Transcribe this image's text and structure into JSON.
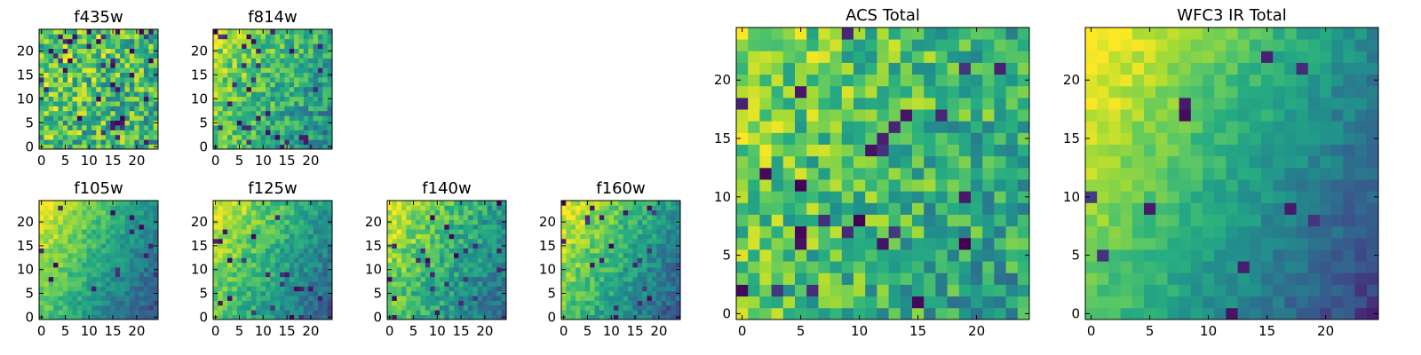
{
  "chart_data": [
    {
      "type": "heatmap",
      "title": "f435w",
      "grid": false,
      "colormap": "viridis",
      "x_range": [
        0,
        24
      ],
      "y_range": [
        0,
        24
      ],
      "xticks": [
        "0",
        "5",
        "10",
        "15",
        "20"
      ],
      "yticks": [
        "0",
        "5",
        "10",
        "15",
        "20"
      ],
      "values": "25x25 image; noisy, mostly mid-to-high intensity with scattered dark pixels"
    },
    {
      "type": "heatmap",
      "title": "f814w",
      "grid": false,
      "colormap": "viridis",
      "x_range": [
        0,
        24
      ],
      "y_range": [
        0,
        24
      ],
      "xticks": [
        "0",
        "5",
        "10",
        "15",
        "20"
      ],
      "yticks": [
        "0",
        "5",
        "10",
        "15",
        "20"
      ],
      "values": "25x25 image; brighter upper-left, darker lower-right, noisy"
    },
    {
      "type": "heatmap",
      "title": "f105w",
      "grid": false,
      "colormap": "viridis",
      "x_range": [
        0,
        24
      ],
      "y_range": [
        0,
        24
      ],
      "xticks": [
        "0",
        "5",
        "10",
        "15",
        "20"
      ],
      "yticks": [
        "0",
        "5",
        "10",
        "15",
        "20"
      ],
      "values": "25x25 image; bright left edge fading to dark at lower-right"
    },
    {
      "type": "heatmap",
      "title": "f125w",
      "grid": false,
      "colormap": "viridis",
      "x_range": [
        0,
        24
      ],
      "y_range": [
        0,
        24
      ],
      "xticks": [
        "0",
        "5",
        "10",
        "15",
        "20"
      ],
      "yticks": [
        "0",
        "5",
        "10",
        "15",
        "20"
      ],
      "values": "25x25 image; bright upper-left, darker lower-right"
    },
    {
      "type": "heatmap",
      "title": "f140w",
      "grid": false,
      "colormap": "viridis",
      "x_range": [
        0,
        24
      ],
      "y_range": [
        0,
        24
      ],
      "xticks": [
        "0",
        "5",
        "10",
        "15",
        "20"
      ],
      "yticks": [
        "0",
        "5",
        "10",
        "15",
        "20"
      ],
      "values": "25x25 image; bright left, dark patches at lower-right"
    },
    {
      "type": "heatmap",
      "title": "f160w",
      "grid": false,
      "colormap": "viridis",
      "x_range": [
        0,
        24
      ],
      "y_range": [
        0,
        24
      ],
      "xticks": [
        "0",
        "5",
        "10",
        "15",
        "20"
      ],
      "yticks": [
        "0",
        "5",
        "10",
        "15",
        "20"
      ],
      "values": "25x25 image; bright left edge, dark lower-right corner"
    },
    {
      "type": "heatmap",
      "title": "ACS Total",
      "grid": false,
      "colormap": "viridis",
      "x_range": [
        0,
        24
      ],
      "y_range": [
        0,
        24
      ],
      "xticks": [
        "0",
        "5",
        "10",
        "15",
        "20"
      ],
      "yticks": [
        "0",
        "5",
        "10",
        "15",
        "20"
      ],
      "values": "25x25 image; mid-to-high intensity with scattered dark pixels, darker near bottom-right"
    },
    {
      "type": "heatmap",
      "title": "WFC3 IR Total",
      "grid": false,
      "colormap": "viridis",
      "x_range": [
        0,
        24
      ],
      "y_range": [
        0,
        24
      ],
      "xticks": [
        "0",
        "5",
        "10",
        "15",
        "20"
      ],
      "yticks": [
        "0",
        "5",
        "10",
        "15",
        "20"
      ],
      "values": "25x25 image; smooth gradient, bright yellow left edge to dark purple lower-right"
    }
  ]
}
